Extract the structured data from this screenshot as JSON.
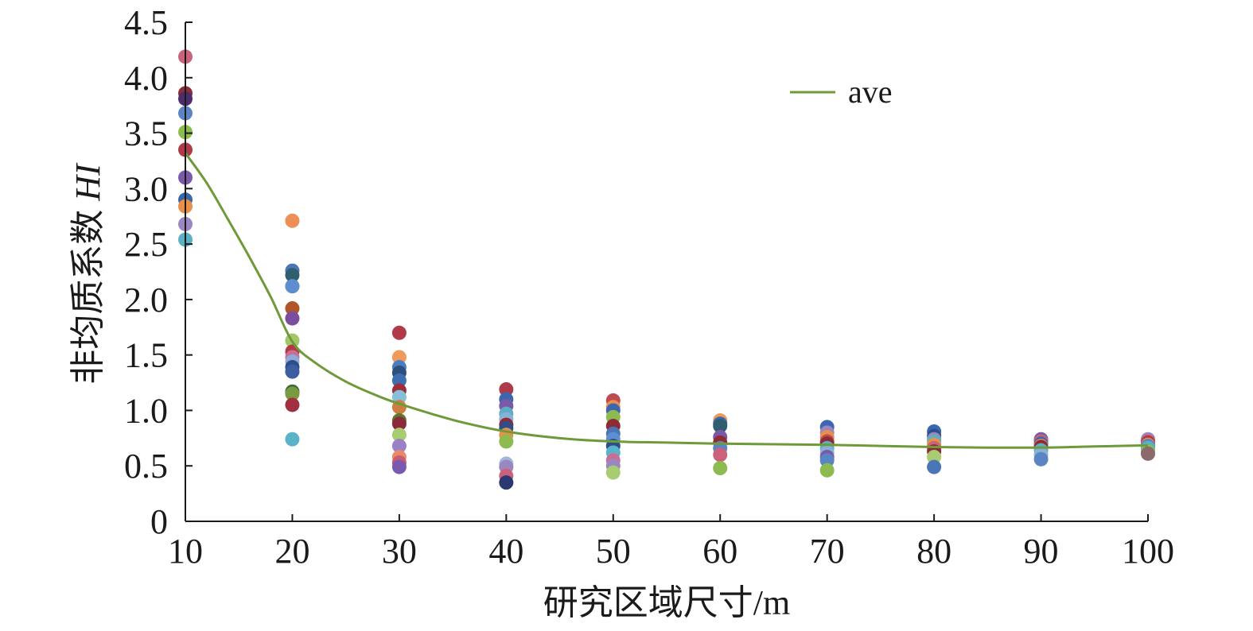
{
  "chart_data": {
    "type": "scatter",
    "xlabel": "研究区域尺寸/m",
    "ylabel_prefix": "非均质系数 ",
    "ylabel_italic": "HI",
    "xlim": [
      10,
      100
    ],
    "ylim": [
      0,
      4.5
    ],
    "x_ticks": [
      10,
      20,
      30,
      40,
      50,
      60,
      70,
      80,
      90,
      100
    ],
    "x_tick_labels": [
      "10",
      "20",
      "30",
      "40",
      "50",
      "60",
      "70",
      "80",
      "90",
      "100"
    ],
    "y_ticks": [
      0,
      0.5,
      1.0,
      1.5,
      2.0,
      2.5,
      3.0,
      3.5,
      4.0,
      4.5
    ],
    "y_tick_labels": [
      "0",
      "0.5",
      "1.0",
      "1.5",
      "2.0",
      "2.5",
      "3.0",
      "3.5",
      "4.0",
      "4.5"
    ],
    "grid": false,
    "legend": {
      "position": "top-right",
      "entries": [
        {
          "label": "ave",
          "color": "#6e9a3a"
        }
      ]
    },
    "average_curve": {
      "name": "ave",
      "color": "#6e9a3a",
      "points": [
        [
          10,
          3.32
        ],
        [
          12,
          3.05
        ],
        [
          14,
          2.72
        ],
        [
          16,
          2.38
        ],
        [
          18,
          2.02
        ],
        [
          20,
          1.62
        ],
        [
          22,
          1.44
        ],
        [
          25,
          1.26
        ],
        [
          28,
          1.13
        ],
        [
          30,
          1.06
        ],
        [
          33,
          0.97
        ],
        [
          36,
          0.89
        ],
        [
          40,
          0.81
        ],
        [
          45,
          0.75
        ],
        [
          50,
          0.72
        ],
        [
          55,
          0.71
        ],
        [
          60,
          0.7
        ],
        [
          65,
          0.695
        ],
        [
          70,
          0.69
        ],
        [
          75,
          0.68
        ],
        [
          80,
          0.67
        ],
        [
          85,
          0.665
        ],
        [
          90,
          0.665
        ],
        [
          95,
          0.675
        ],
        [
          100,
          0.685
        ]
      ]
    },
    "points": [
      {
        "x": 10,
        "y": 4.19,
        "color": "#c9627a"
      },
      {
        "x": 10,
        "y": 3.86,
        "color": "#8e2b35"
      },
      {
        "x": 10,
        "y": 3.81,
        "color": "#4b2d6b"
      },
      {
        "x": 10,
        "y": 3.68,
        "color": "#5b84c4"
      },
      {
        "x": 10,
        "y": 3.51,
        "color": "#8dbb4f"
      },
      {
        "x": 10,
        "y": 3.35,
        "color": "#b03a48"
      },
      {
        "x": 10,
        "y": 3.1,
        "color": "#7a5aa8"
      },
      {
        "x": 10,
        "y": 2.9,
        "color": "#3b67a8"
      },
      {
        "x": 10,
        "y": 2.84,
        "color": "#e8904a"
      },
      {
        "x": 10,
        "y": 2.68,
        "color": "#9a86c0"
      },
      {
        "x": 10,
        "y": 2.54,
        "color": "#5bb1c3"
      },
      {
        "x": 20,
        "y": 2.71,
        "color": "#ee8f57"
      },
      {
        "x": 20,
        "y": 2.26,
        "color": "#4a76b6"
      },
      {
        "x": 20,
        "y": 2.22,
        "color": "#2f5f6e"
      },
      {
        "x": 20,
        "y": 2.12,
        "color": "#c2466a"
      },
      {
        "x": 20,
        "y": 2.12,
        "color": "#5d8ed0"
      },
      {
        "x": 20,
        "y": 1.92,
        "color": "#b0562a"
      },
      {
        "x": 20,
        "y": 1.83,
        "color": "#7a4fa0"
      },
      {
        "x": 20,
        "y": 1.63,
        "color": "#a2c766"
      },
      {
        "x": 20,
        "y": 1.53,
        "color": "#b33a44"
      },
      {
        "x": 20,
        "y": 1.48,
        "color": "#c96f95"
      },
      {
        "x": 20,
        "y": 1.44,
        "color": "#8faad8"
      },
      {
        "x": 20,
        "y": 1.39,
        "color": "#2d4e8a"
      },
      {
        "x": 20,
        "y": 1.35,
        "color": "#3b5fa0"
      },
      {
        "x": 20,
        "y": 1.17,
        "color": "#3e6b3a"
      },
      {
        "x": 20,
        "y": 1.15,
        "color": "#7a9a42"
      },
      {
        "x": 20,
        "y": 1.05,
        "color": "#a03040"
      },
      {
        "x": 20,
        "y": 0.74,
        "color": "#5bb3c9"
      },
      {
        "x": 30,
        "y": 1.7,
        "color": "#b03a48"
      },
      {
        "x": 30,
        "y": 1.48,
        "color": "#ef9a5a"
      },
      {
        "x": 30,
        "y": 1.39,
        "color": "#4a7ec2"
      },
      {
        "x": 30,
        "y": 1.34,
        "color": "#2e4f7e"
      },
      {
        "x": 30,
        "y": 1.27,
        "color": "#3c6fb0"
      },
      {
        "x": 30,
        "y": 1.18,
        "color": "#9e2e3a"
      },
      {
        "x": 30,
        "y": 1.12,
        "color": "#86c0d8"
      },
      {
        "x": 30,
        "y": 1.03,
        "color": "#cc8040"
      },
      {
        "x": 30,
        "y": 0.91,
        "color": "#5c7a2e"
      },
      {
        "x": 30,
        "y": 0.88,
        "color": "#8a2a3a"
      },
      {
        "x": 30,
        "y": 0.78,
        "color": "#a7cc72"
      },
      {
        "x": 30,
        "y": 0.68,
        "color": "#9a80c4"
      },
      {
        "x": 30,
        "y": 0.58,
        "color": "#e88a6a"
      },
      {
        "x": 30,
        "y": 0.53,
        "color": "#c95a70"
      },
      {
        "x": 30,
        "y": 0.49,
        "color": "#7a5ab0"
      },
      {
        "x": 40,
        "y": 1.19,
        "color": "#b03a48"
      },
      {
        "x": 40,
        "y": 1.1,
        "color": "#3b67b0"
      },
      {
        "x": 40,
        "y": 1.04,
        "color": "#7a5aa8"
      },
      {
        "x": 40,
        "y": 0.97,
        "color": "#5bb1c3"
      },
      {
        "x": 40,
        "y": 0.92,
        "color": "#8ab0d8"
      },
      {
        "x": 40,
        "y": 0.87,
        "color": "#8e2b35"
      },
      {
        "x": 40,
        "y": 0.84,
        "color": "#2d4e8a"
      },
      {
        "x": 40,
        "y": 0.78,
        "color": "#e8904a"
      },
      {
        "x": 40,
        "y": 0.72,
        "color": "#8dbb4f"
      },
      {
        "x": 40,
        "y": 0.52,
        "color": "#a2b8d8"
      },
      {
        "x": 40,
        "y": 0.49,
        "color": "#9a86c0"
      },
      {
        "x": 40,
        "y": 0.41,
        "color": "#c9627a"
      },
      {
        "x": 40,
        "y": 0.35,
        "color": "#2a3a70"
      },
      {
        "x": 50,
        "y": 1.09,
        "color": "#c04a52"
      },
      {
        "x": 50,
        "y": 1.03,
        "color": "#e8904a"
      },
      {
        "x": 50,
        "y": 1.0,
        "color": "#3b67b0"
      },
      {
        "x": 50,
        "y": 0.94,
        "color": "#8dbb4f"
      },
      {
        "x": 50,
        "y": 0.86,
        "color": "#8e2b35"
      },
      {
        "x": 50,
        "y": 0.79,
        "color": "#4a76b6"
      },
      {
        "x": 50,
        "y": 0.74,
        "color": "#5d8ed0"
      },
      {
        "x": 50,
        "y": 0.68,
        "color": "#2d4e8a"
      },
      {
        "x": 50,
        "y": 0.62,
        "color": "#5bb3c9"
      },
      {
        "x": 50,
        "y": 0.55,
        "color": "#c96f95"
      },
      {
        "x": 50,
        "y": 0.5,
        "color": "#9a86c0"
      },
      {
        "x": 50,
        "y": 0.44,
        "color": "#a7cc72"
      },
      {
        "x": 60,
        "y": 0.91,
        "color": "#ef9a5a"
      },
      {
        "x": 60,
        "y": 0.88,
        "color": "#3b67b0"
      },
      {
        "x": 60,
        "y": 0.86,
        "color": "#2f5f6e"
      },
      {
        "x": 60,
        "y": 0.76,
        "color": "#7a5aa8"
      },
      {
        "x": 60,
        "y": 0.71,
        "color": "#8e2b35"
      },
      {
        "x": 60,
        "y": 0.66,
        "color": "#5b84c4"
      },
      {
        "x": 60,
        "y": 0.6,
        "color": "#c9627a"
      },
      {
        "x": 60,
        "y": 0.48,
        "color": "#8dbb4f"
      },
      {
        "x": 70,
        "y": 0.85,
        "color": "#3b67b0"
      },
      {
        "x": 70,
        "y": 0.8,
        "color": "#9a86c0"
      },
      {
        "x": 70,
        "y": 0.76,
        "color": "#e8904a"
      },
      {
        "x": 70,
        "y": 0.72,
        "color": "#c04a52"
      },
      {
        "x": 70,
        "y": 0.7,
        "color": "#8e2b35"
      },
      {
        "x": 70,
        "y": 0.66,
        "color": "#5bb1c3"
      },
      {
        "x": 70,
        "y": 0.62,
        "color": "#8ab0d8"
      },
      {
        "x": 70,
        "y": 0.58,
        "color": "#7a5aa8"
      },
      {
        "x": 70,
        "y": 0.55,
        "color": "#5b84c4"
      },
      {
        "x": 70,
        "y": 0.46,
        "color": "#8dbb4f"
      },
      {
        "x": 80,
        "y": 0.81,
        "color": "#3b67b0"
      },
      {
        "x": 80,
        "y": 0.77,
        "color": "#2d4e8a"
      },
      {
        "x": 80,
        "y": 0.74,
        "color": "#9a86c0"
      },
      {
        "x": 80,
        "y": 0.72,
        "color": "#5bb1c3"
      },
      {
        "x": 80,
        "y": 0.69,
        "color": "#e8904a"
      },
      {
        "x": 80,
        "y": 0.66,
        "color": "#c9627a"
      },
      {
        "x": 80,
        "y": 0.63,
        "color": "#8e2b35"
      },
      {
        "x": 80,
        "y": 0.58,
        "color": "#a7cc72"
      },
      {
        "x": 80,
        "y": 0.49,
        "color": "#4a76b6"
      },
      {
        "x": 90,
        "y": 0.74,
        "color": "#7a5aa8"
      },
      {
        "x": 90,
        "y": 0.72,
        "color": "#c9627a"
      },
      {
        "x": 90,
        "y": 0.7,
        "color": "#3b67b0"
      },
      {
        "x": 90,
        "y": 0.68,
        "color": "#e8904a"
      },
      {
        "x": 90,
        "y": 0.67,
        "color": "#8e2b35"
      },
      {
        "x": 90,
        "y": 0.64,
        "color": "#5bb1c3"
      },
      {
        "x": 90,
        "y": 0.6,
        "color": "#8ab0d8"
      },
      {
        "x": 90,
        "y": 0.56,
        "color": "#5b84c4"
      },
      {
        "x": 100,
        "y": 0.74,
        "color": "#9a86c0"
      },
      {
        "x": 100,
        "y": 0.72,
        "color": "#c9627a"
      },
      {
        "x": 100,
        "y": 0.71,
        "color": "#b03a48"
      },
      {
        "x": 100,
        "y": 0.69,
        "color": "#e8904a"
      },
      {
        "x": 100,
        "y": 0.68,
        "color": "#5b84c4"
      },
      {
        "x": 100,
        "y": 0.66,
        "color": "#5bb1c3"
      },
      {
        "x": 100,
        "y": 0.63,
        "color": "#8dbb4f"
      },
      {
        "x": 100,
        "y": 0.61,
        "color": "#8a6a6a"
      }
    ]
  }
}
